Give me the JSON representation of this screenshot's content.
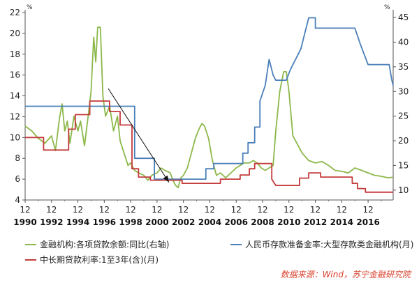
{
  "chart_data": {
    "type": "line",
    "left_axis": {
      "unit": "%",
      "ylim": [
        4,
        22
      ],
      "ticks": [
        4,
        6,
        8,
        10,
        12,
        14,
        16,
        18,
        20,
        22
      ]
    },
    "right_axis": {
      "unit": "%",
      "ylim": [
        8,
        46
      ],
      "ticks": [
        10,
        15,
        20,
        25,
        30,
        35,
        40,
        45
      ]
    },
    "x_axis": {
      "range": [
        1990.0,
        2017.9
      ],
      "ticks": [
        1990,
        1992,
        1994,
        1996,
        1998,
        2000,
        2002,
        2004,
        2006,
        2008,
        2010,
        2012,
        2014,
        2016
      ],
      "month_label": "12",
      "year_labels": [
        "1990",
        "1992",
        "1994",
        "1996",
        "1998",
        "2000",
        "2002",
        "2004",
        "2006",
        "2008",
        "2010",
        "2012",
        "2014",
        "2016"
      ]
    },
    "grid": false,
    "series": [
      {
        "name": "金融机构:各项贷款余额:同比(右轴)",
        "axis": "right",
        "color": "#8cb84a",
        "points": [
          [
            1990.0,
            23.0
          ],
          [
            1990.5,
            22.0
          ],
          [
            1991.0,
            20.5
          ],
          [
            1991.5,
            19.5
          ],
          [
            1992.0,
            21.0
          ],
          [
            1992.3,
            18.0
          ],
          [
            1992.6,
            24.5
          ],
          [
            1992.8,
            27.5
          ],
          [
            1993.0,
            22.0
          ],
          [
            1993.2,
            24.0
          ],
          [
            1993.4,
            19.5
          ],
          [
            1993.7,
            25.0
          ],
          [
            1994.0,
            22.0
          ],
          [
            1994.2,
            24.0
          ],
          [
            1994.5,
            19.0
          ],
          [
            1994.8,
            25.5
          ],
          [
            1995.0,
            30.0
          ],
          [
            1995.2,
            41.0
          ],
          [
            1995.35,
            36.0
          ],
          [
            1995.5,
            43.0
          ],
          [
            1995.7,
            43.0
          ],
          [
            1995.9,
            29.0
          ],
          [
            1996.1,
            25.0
          ],
          [
            1996.4,
            27.0
          ],
          [
            1996.7,
            22.0
          ],
          [
            1997.0,
            25.0
          ],
          [
            1997.2,
            20.0
          ],
          [
            1997.5,
            17.5
          ],
          [
            1997.8,
            15.0
          ],
          [
            1998.0,
            15.5
          ],
          [
            1998.3,
            14.0
          ],
          [
            1998.6,
            13.5
          ],
          [
            1999.0,
            13.0
          ],
          [
            1999.3,
            12.0
          ],
          [
            1999.6,
            13.0
          ],
          [
            2000.0,
            13.5
          ],
          [
            2000.3,
            14.5
          ],
          [
            2000.6,
            14.0
          ],
          [
            2001.0,
            13.5
          ],
          [
            2001.2,
            12.0
          ],
          [
            2001.4,
            11.0
          ],
          [
            2001.6,
            10.5
          ],
          [
            2001.8,
            12.5
          ],
          [
            2002.0,
            13.0
          ],
          [
            2002.3,
            14.5
          ],
          [
            2002.6,
            17.5
          ],
          [
            2002.9,
            20.5
          ],
          [
            2003.2,
            22.5
          ],
          [
            2003.4,
            23.5
          ],
          [
            2003.6,
            23.0
          ],
          [
            2003.9,
            20.5
          ],
          [
            2004.2,
            16.0
          ],
          [
            2004.5,
            13.0
          ],
          [
            2004.8,
            13.5
          ],
          [
            2005.2,
            12.5
          ],
          [
            2005.6,
            13.5
          ],
          [
            2006.0,
            14.5
          ],
          [
            2006.3,
            15.0
          ],
          [
            2006.6,
            15.5
          ],
          [
            2007.0,
            15.5
          ],
          [
            2007.3,
            16.0
          ],
          [
            2007.6,
            15.5
          ],
          [
            2007.9,
            14.5
          ],
          [
            2008.2,
            14.0
          ],
          [
            2008.5,
            14.5
          ],
          [
            2008.8,
            15.0
          ],
          [
            2009.0,
            22.0
          ],
          [
            2009.3,
            30.0
          ],
          [
            2009.6,
            34.0
          ],
          [
            2009.8,
            34.0
          ],
          [
            2010.0,
            30.0
          ],
          [
            2010.3,
            21.0
          ],
          [
            2010.6,
            19.5
          ],
          [
            2011.0,
            17.5
          ],
          [
            2011.5,
            16.0
          ],
          [
            2012.0,
            15.5
          ],
          [
            2012.5,
            15.8
          ],
          [
            2013.0,
            15.0
          ],
          [
            2013.5,
            14.0
          ],
          [
            2014.0,
            13.8
          ],
          [
            2014.5,
            13.5
          ],
          [
            2015.0,
            14.5
          ],
          [
            2015.5,
            14.0
          ],
          [
            2016.0,
            13.5
          ],
          [
            2016.5,
            13.0
          ],
          [
            2017.0,
            12.8
          ],
          [
            2017.5,
            12.5
          ],
          [
            2017.9,
            12.6
          ]
        ]
      },
      {
        "name": "人民币存款准备金率:大型存款类金融机构(月)",
        "axis": "left",
        "color": "#4a7fba",
        "points": [
          [
            1990.0,
            13.0
          ],
          [
            1998.3,
            13.0
          ],
          [
            1998.3,
            8.0
          ],
          [
            1999.8,
            8.0
          ],
          [
            1999.8,
            6.0
          ],
          [
            2003.7,
            6.0
          ],
          [
            2003.7,
            7.0
          ],
          [
            2004.3,
            7.0
          ],
          [
            2004.3,
            7.5
          ],
          [
            2006.5,
            7.5
          ],
          [
            2006.5,
            8.5
          ],
          [
            2006.9,
            8.5
          ],
          [
            2006.9,
            9.5
          ],
          [
            2007.4,
            9.5
          ],
          [
            2007.4,
            11.0
          ],
          [
            2007.8,
            11.0
          ],
          [
            2007.8,
            13.5
          ],
          [
            2008.2,
            15.0
          ],
          [
            2008.5,
            17.5
          ],
          [
            2008.8,
            16.0
          ],
          [
            2009.0,
            15.5
          ],
          [
            2009.8,
            15.5
          ],
          [
            2010.1,
            16.5
          ],
          [
            2010.5,
            17.5
          ],
          [
            2010.9,
            18.5
          ],
          [
            2011.2,
            20.0
          ],
          [
            2011.5,
            21.5
          ],
          [
            2012.0,
            21.5
          ],
          [
            2012.0,
            20.5
          ],
          [
            2015.0,
            20.5
          ],
          [
            2015.4,
            19.0
          ],
          [
            2015.7,
            18.0
          ],
          [
            2016.0,
            17.0
          ],
          [
            2017.6,
            17.0
          ],
          [
            2017.8,
            15.5
          ],
          [
            2017.9,
            15.0
          ]
        ]
      },
      {
        "name": "中长期贷款利率:1至3年(含)(月)",
        "axis": "left",
        "color": "#c43a3a",
        "points": [
          [
            1990.0,
            10.0
          ],
          [
            1991.4,
            10.0
          ],
          [
            1991.4,
            8.8
          ],
          [
            1993.3,
            8.8
          ],
          [
            1993.3,
            10.8
          ],
          [
            1993.8,
            10.8
          ],
          [
            1993.8,
            12.2
          ],
          [
            1994.9,
            12.2
          ],
          [
            1994.9,
            13.5
          ],
          [
            1996.4,
            13.5
          ],
          [
            1996.4,
            12.5
          ],
          [
            1997.2,
            12.5
          ],
          [
            1997.2,
            11.2
          ],
          [
            1998.1,
            11.2
          ],
          [
            1998.1,
            7.0
          ],
          [
            1998.6,
            7.0
          ],
          [
            1998.6,
            6.2
          ],
          [
            1999.5,
            6.2
          ],
          [
            1999.5,
            5.9
          ],
          [
            2001.9,
            5.9
          ],
          [
            2001.9,
            5.6
          ],
          [
            2004.8,
            5.6
          ],
          [
            2004.8,
            6.0
          ],
          [
            2006.3,
            6.0
          ],
          [
            2006.3,
            6.4
          ],
          [
            2007.0,
            6.4
          ],
          [
            2007.0,
            7.0
          ],
          [
            2007.4,
            7.0
          ],
          [
            2007.4,
            7.5
          ],
          [
            2008.7,
            7.5
          ],
          [
            2008.7,
            6.0
          ],
          [
            2009.0,
            5.4
          ],
          [
            2010.8,
            5.4
          ],
          [
            2010.8,
            6.1
          ],
          [
            2011.5,
            6.1
          ],
          [
            2011.5,
            6.6
          ],
          [
            2012.4,
            6.6
          ],
          [
            2012.4,
            6.2
          ],
          [
            2014.8,
            6.2
          ],
          [
            2014.8,
            5.6
          ],
          [
            2015.2,
            5.6
          ],
          [
            2015.2,
            5.1
          ],
          [
            2015.8,
            5.1
          ],
          [
            2015.8,
            4.75
          ],
          [
            2017.9,
            4.75
          ]
        ]
      }
    ],
    "annotation": {
      "type": "arrow",
      "from": [
        1996.3,
        14.7
      ],
      "to": [
        2000.9,
        5.7
      ]
    },
    "legend": {
      "placement": "bottom",
      "items": [
        {
          "label": "金融机构:各项贷款余额:同比(右轴)",
          "color": "#8cb84a"
        },
        {
          "label": "人民币存款准备金率:大型存款类金融机构(月)",
          "color": "#4a7fba"
        },
        {
          "label": "中长期贷款利率:1至3年(含)(月)",
          "color": "#c43a3a"
        }
      ]
    },
    "source": "数据来源：Wind，苏宁金融研究院"
  }
}
